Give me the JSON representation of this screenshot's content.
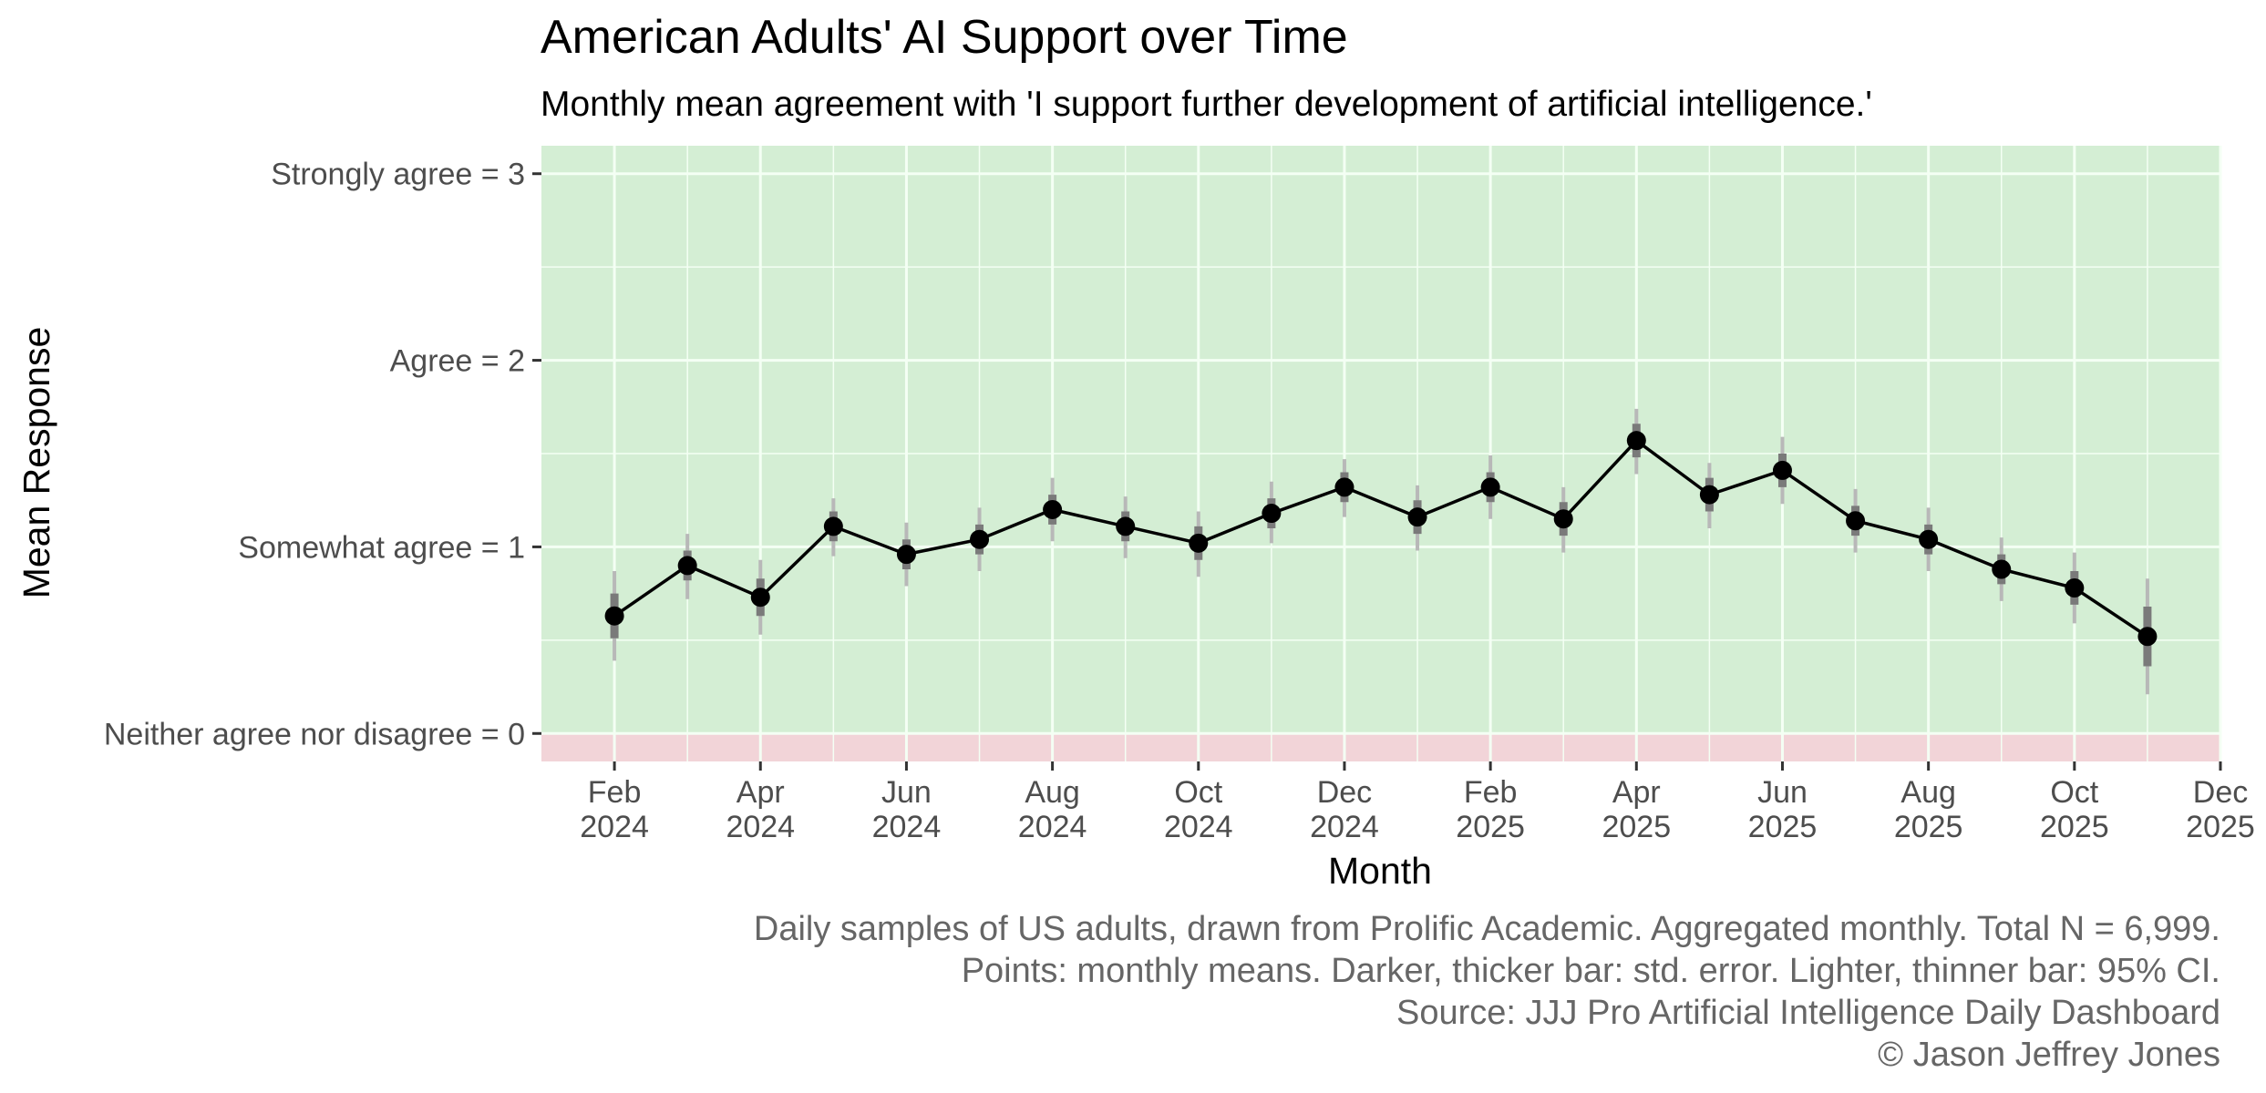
{
  "chart_data": {
    "type": "line",
    "title": "American Adults' AI Support over Time",
    "subtitle": "Monthly mean agreement with 'I support further development of artificial intelligence.'",
    "xlabel": "Month",
    "ylabel": "Mean Response",
    "ylim": [
      -0.15,
      3.15
    ],
    "xlim": [
      "2024-01-01",
      "2025-12-01"
    ],
    "grid": true,
    "background_regions": [
      {
        "from": 0,
        "to": 3.15,
        "color": "#d4eed4"
      },
      {
        "from": -0.15,
        "to": 0,
        "color": "#f2d4d8"
      }
    ],
    "y_ticks": [
      {
        "value": 3,
        "label": "Strongly agree = 3"
      },
      {
        "value": 2,
        "label": "Agree = 2"
      },
      {
        "value": 1,
        "label": "Somewhat agree = 1"
      },
      {
        "value": 0,
        "label": "Neither agree nor disagree = 0"
      }
    ],
    "x_ticks": [
      {
        "date": "2024-02",
        "label": [
          "Feb",
          "2024"
        ]
      },
      {
        "date": "2024-04",
        "label": [
          "Apr",
          "2024"
        ]
      },
      {
        "date": "2024-06",
        "label": [
          "Jun",
          "2024"
        ]
      },
      {
        "date": "2024-08",
        "label": [
          "Aug",
          "2024"
        ]
      },
      {
        "date": "2024-10",
        "label": [
          "Oct",
          "2024"
        ]
      },
      {
        "date": "2024-12",
        "label": [
          "Dec",
          "2024"
        ]
      },
      {
        "date": "2025-02",
        "label": [
          "Feb",
          "2025"
        ]
      },
      {
        "date": "2025-04",
        "label": [
          "Apr",
          "2025"
        ]
      },
      {
        "date": "2025-06",
        "label": [
          "Jun",
          "2025"
        ]
      },
      {
        "date": "2025-08",
        "label": [
          "Aug",
          "2025"
        ]
      },
      {
        "date": "2025-10",
        "label": [
          "Oct",
          "2025"
        ]
      },
      {
        "date": "2025-12",
        "label": [
          "Dec",
          "2025"
        ]
      }
    ],
    "points": [
      {
        "month": "2024-02",
        "mean": 0.63,
        "se_low": 0.51,
        "se_high": 0.75,
        "ci_low": 0.39,
        "ci_high": 0.87
      },
      {
        "month": "2024-03",
        "mean": 0.9,
        "se_low": 0.82,
        "se_high": 0.98,
        "ci_low": 0.72,
        "ci_high": 1.07
      },
      {
        "month": "2024-04",
        "mean": 0.73,
        "se_low": 0.63,
        "se_high": 0.83,
        "ci_low": 0.53,
        "ci_high": 0.93
      },
      {
        "month": "2024-05",
        "mean": 1.11,
        "se_low": 1.03,
        "se_high": 1.19,
        "ci_low": 0.95,
        "ci_high": 1.26
      },
      {
        "month": "2024-06",
        "mean": 0.96,
        "se_low": 0.88,
        "se_high": 1.04,
        "ci_low": 0.79,
        "ci_high": 1.13
      },
      {
        "month": "2024-07",
        "mean": 1.04,
        "se_low": 0.96,
        "se_high": 1.12,
        "ci_low": 0.87,
        "ci_high": 1.21
      },
      {
        "month": "2024-08",
        "mean": 1.2,
        "se_low": 1.12,
        "se_high": 1.28,
        "ci_low": 1.03,
        "ci_high": 1.37
      },
      {
        "month": "2024-09",
        "mean": 1.11,
        "se_low": 1.03,
        "se_high": 1.19,
        "ci_low": 0.94,
        "ci_high": 1.27
      },
      {
        "month": "2024-10",
        "mean": 1.02,
        "se_low": 0.93,
        "se_high": 1.11,
        "ci_low": 0.84,
        "ci_high": 1.19
      },
      {
        "month": "2024-11",
        "mean": 1.18,
        "se_low": 1.1,
        "se_high": 1.26,
        "ci_low": 1.02,
        "ci_high": 1.35
      },
      {
        "month": "2024-12",
        "mean": 1.32,
        "se_low": 1.24,
        "se_high": 1.4,
        "ci_low": 1.16,
        "ci_high": 1.47
      },
      {
        "month": "2025-01",
        "mean": 1.16,
        "se_low": 1.07,
        "se_high": 1.25,
        "ci_low": 0.98,
        "ci_high": 1.33
      },
      {
        "month": "2025-02",
        "mean": 1.32,
        "se_low": 1.24,
        "se_high": 1.4,
        "ci_low": 1.15,
        "ci_high": 1.49
      },
      {
        "month": "2025-03",
        "mean": 1.15,
        "se_low": 1.06,
        "se_high": 1.24,
        "ci_low": 0.97,
        "ci_high": 1.32
      },
      {
        "month": "2025-04",
        "mean": 1.57,
        "se_low": 1.48,
        "se_high": 1.66,
        "ci_low": 1.39,
        "ci_high": 1.74
      },
      {
        "month": "2025-05",
        "mean": 1.28,
        "se_low": 1.19,
        "se_high": 1.37,
        "ci_low": 1.1,
        "ci_high": 1.45
      },
      {
        "month": "2025-06",
        "mean": 1.41,
        "se_low": 1.32,
        "se_high": 1.5,
        "ci_low": 1.23,
        "ci_high": 1.59
      },
      {
        "month": "2025-07",
        "mean": 1.14,
        "se_low": 1.06,
        "se_high": 1.22,
        "ci_low": 0.97,
        "ci_high": 1.31
      },
      {
        "month": "2025-08",
        "mean": 1.04,
        "se_low": 0.96,
        "se_high": 1.12,
        "ci_low": 0.87,
        "ci_high": 1.21
      },
      {
        "month": "2025-09",
        "mean": 0.88,
        "se_low": 0.8,
        "se_high": 0.96,
        "ci_low": 0.71,
        "ci_high": 1.05
      },
      {
        "month": "2025-10",
        "mean": 0.78,
        "se_low": 0.69,
        "se_high": 0.87,
        "ci_low": 0.59,
        "ci_high": 0.97
      },
      {
        "month": "2025-11",
        "mean": 0.52,
        "se_low": 0.36,
        "se_high": 0.68,
        "ci_low": 0.21,
        "ci_high": 0.83
      }
    ],
    "caption": [
      "Daily samples of US adults, drawn from Prolific Academic. Aggregated monthly. Total N = 6,999.",
      "Points: monthly means. Darker, thicker bar: std. error.  Lighter, thinner bar: 95% CI.",
      "Source: JJJ Pro Artificial Intelligence Daily Dashboard",
      "© Jason Jeffrey Jones"
    ],
    "colors": {
      "agree_region": "#d4eed4",
      "disagree_region": "#f2d4d8",
      "grid": "#f4fff4",
      "line": "#000000",
      "point": "#000000",
      "se_bar": "#7a7a7a",
      "ci_bar": "#b8b8b8"
    }
  }
}
